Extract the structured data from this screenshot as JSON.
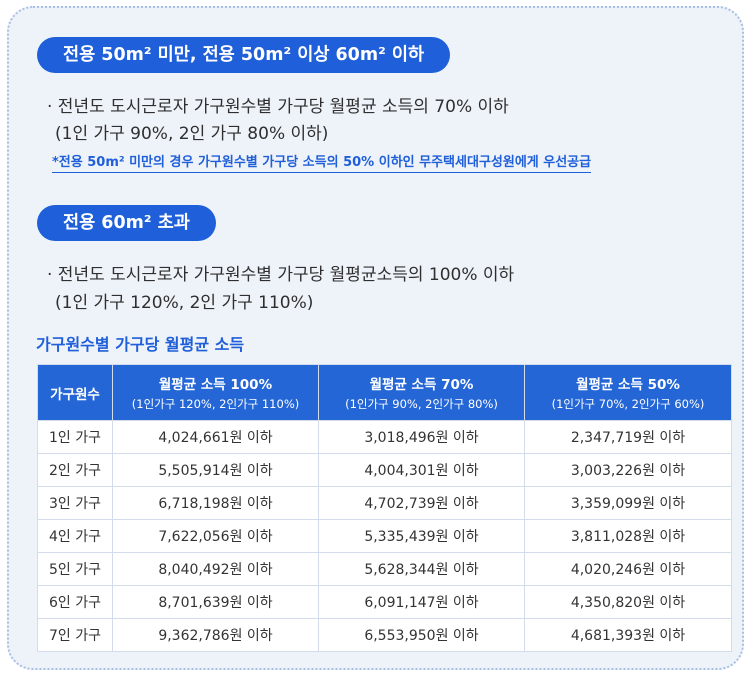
{
  "section1": {
    "heading": "전용 50m² 미만, 전용 50m² 이상 60m² 이하",
    "line1": "· 전년도 도시근로자 가구원수별 가구당 월평균 소득의 70% 이하",
    "line2": "(1인 가구 90%, 2인 가구 80% 이하)",
    "note": "*전용 50m² 미만의 경우 가구원수별 가구당 소득의 50% 이하인 무주택세대구성원에게 우선공급"
  },
  "section2": {
    "heading": "전용 60m² 초과",
    "line1": "· 전년도 도시근로자 가구원수별 가구당 월평균소득의 100% 이하",
    "line2": "(1인 가구 120%, 2인 가구 110%)"
  },
  "table": {
    "title": "가구원수별 가구당 월평균 소득",
    "headers": [
      {
        "main": "가구원수",
        "sub": ""
      },
      {
        "main": "월평균 소득 100%",
        "sub": "(1인가구 120%, 2인가구 110%)"
      },
      {
        "main": "월평균 소득 70%",
        "sub": "(1인가구 90%, 2인가구 80%)"
      },
      {
        "main": "월평균 소득 50%",
        "sub": "(1인가구 70%, 2인가구 60%)"
      }
    ],
    "rows": [
      [
        "1인 가구",
        "4,024,661원 이하",
        "3,018,496원 이하",
        "2,347,719원 이하"
      ],
      [
        "2인 가구",
        "5,505,914원 이하",
        "4,004,301원 이하",
        "3,003,226원 이하"
      ],
      [
        "3인 가구",
        "6,718,198원 이하",
        "4,702,739원 이하",
        "3,359,099원 이하"
      ],
      [
        "4인 가구",
        "7,622,056원 이하",
        "5,335,439원 이하",
        "3,811,028원 이하"
      ],
      [
        "5인 가구",
        "8,040,492원 이하",
        "5,628,344원 이하",
        "4,020,246원 이하"
      ],
      [
        "6인 가구",
        "8,701,639원 이하",
        "6,091,147원 이하",
        "4,350,820원 이하"
      ],
      [
        "7인 가구",
        "9,362,786원 이하",
        "6,553,950원 이하",
        "4,681,393원 이하"
      ]
    ]
  },
  "colors": {
    "accent": "#1f5fd9",
    "header_bg": "#2466d6",
    "card_bg": "#eef2f9",
    "card_border": "#a9bfe6"
  }
}
